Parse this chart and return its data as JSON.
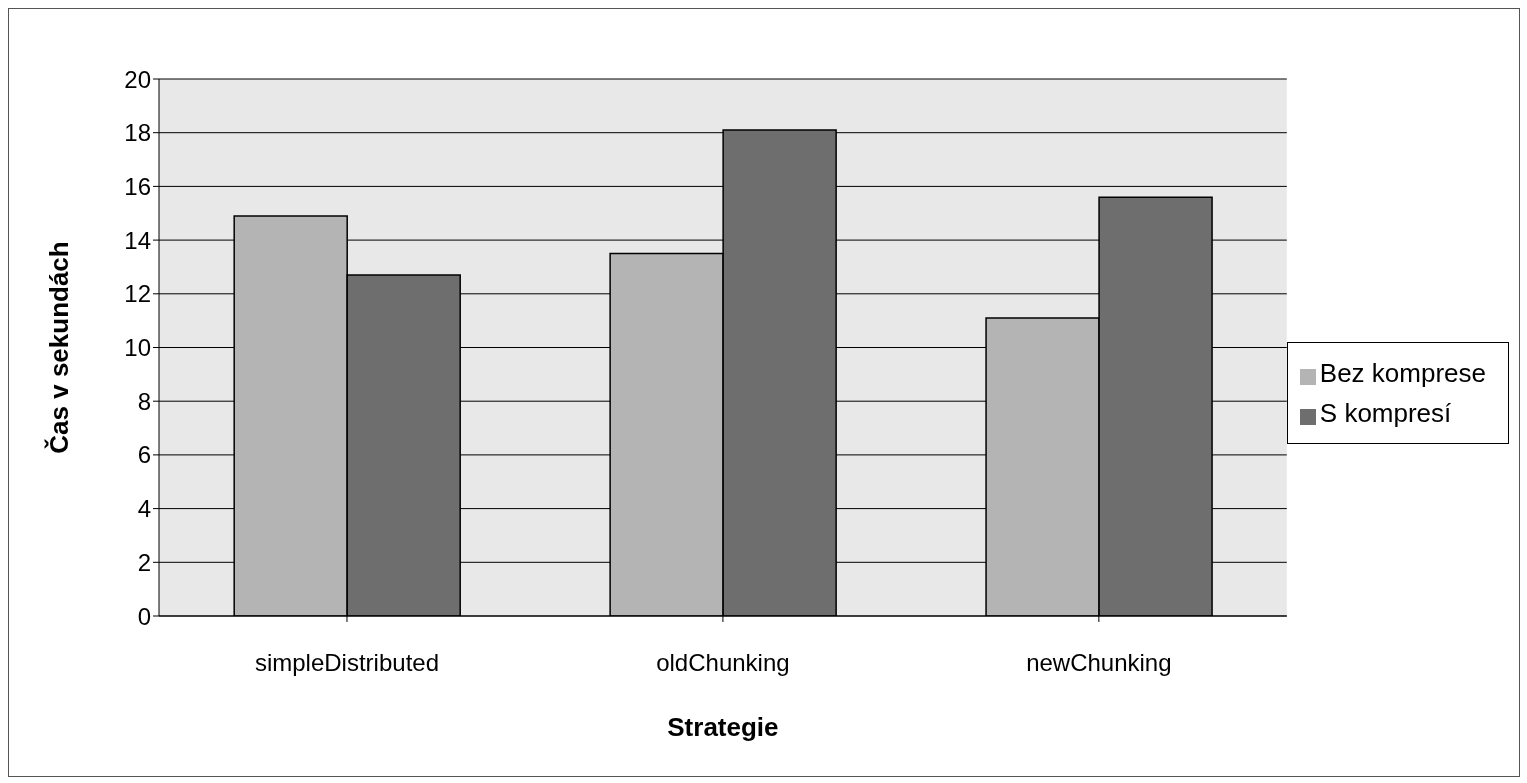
{
  "chart_data": {
    "type": "bar",
    "xlabel": "Strategie",
    "ylabel": "Čas v sekundách",
    "categories": [
      "simpleDistributed",
      "oldChunking",
      "newChunking"
    ],
    "series": [
      {
        "name": "Bez komprese",
        "color": "#b4b4b4",
        "values": [
          14.9,
          13.5,
          11.1
        ]
      },
      {
        "name": "S kompresí",
        "color": "#6e6e6e",
        "values": [
          12.7,
          18.1,
          15.6
        ]
      }
    ],
    "ylim": [
      0,
      20
    ],
    "yticks": [
      0,
      2,
      4,
      6,
      8,
      10,
      12,
      14,
      16,
      18,
      20
    ],
    "grid": "y",
    "legend": "right"
  }
}
